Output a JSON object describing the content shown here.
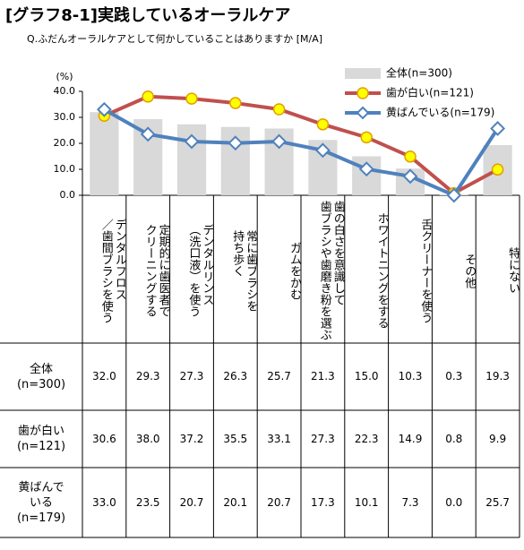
{
  "title": "[グラフ8-1]実践しているオーラルケア",
  "subtitle": "Q.ふだんオーラルケアとして何かしていることはありますか [M/A]",
  "chart_data": {
    "type": "bar_line",
    "y_unit": "(%)",
    "categories": [
      "デンタルフロス\n／歯間ブラシを使う",
      "定期的に歯医者で\nクリーニングする",
      "デンタルリンス\n（洗口液）を使う",
      "常に歯ブラシを\n持ち歩く",
      "ガムをかむ",
      "歯の白さを意識して\n歯ブラシや歯磨き粉を選ぶ",
      "ホワイトニングをする",
      "舌クリーナーを使う",
      "その他",
      "特にない"
    ],
    "ylim": [
      0,
      40
    ],
    "yticks": [
      {
        "value": 0,
        "label": "0.0"
      },
      {
        "value": 10,
        "label": "10.0"
      },
      {
        "value": 20,
        "label": "20.0"
      },
      {
        "value": 30,
        "label": "30.0"
      },
      {
        "value": 40,
        "label": "40.0"
      }
    ],
    "series": [
      {
        "name": "全体(n=300)",
        "kind": "bar",
        "color": "#d9d9d9",
        "table_label": "全体\n(n=300)",
        "values": [
          32.0,
          29.3,
          27.3,
          26.3,
          25.7,
          21.3,
          15.0,
          10.3,
          0.3,
          19.3
        ],
        "value_labels": [
          "32.0",
          "29.3",
          "27.3",
          "26.3",
          "25.7",
          "21.3",
          "15.0",
          "10.3",
          "0.3",
          "19.3"
        ]
      },
      {
        "name": "歯が白い(n=121)",
        "kind": "line",
        "color": "#c0504d",
        "marker_color": "#ffff00",
        "table_label": "歯が白い\n(n=121)",
        "values": [
          30.6,
          38.0,
          37.2,
          35.5,
          33.1,
          27.3,
          22.3,
          14.9,
          0.8,
          9.9
        ],
        "value_labels": [
          "30.6",
          "38.0",
          "37.2",
          "35.5",
          "33.1",
          "27.3",
          "22.3",
          "14.9",
          "0.8",
          "9.9"
        ]
      },
      {
        "name": "黄ばんでいる(n=179)",
        "kind": "line",
        "color": "#4f81bd",
        "marker_color": "#ffffff",
        "table_label": "黄ばんで\nいる\n(n=179)",
        "values": [
          33.0,
          23.5,
          20.7,
          20.1,
          20.7,
          17.3,
          10.1,
          7.3,
          0.0,
          25.7
        ],
        "value_labels": [
          "33.0",
          "23.5",
          "20.7",
          "20.1",
          "20.7",
          "17.3",
          "10.1",
          "7.3",
          "0.0",
          "25.7"
        ]
      }
    ]
  }
}
